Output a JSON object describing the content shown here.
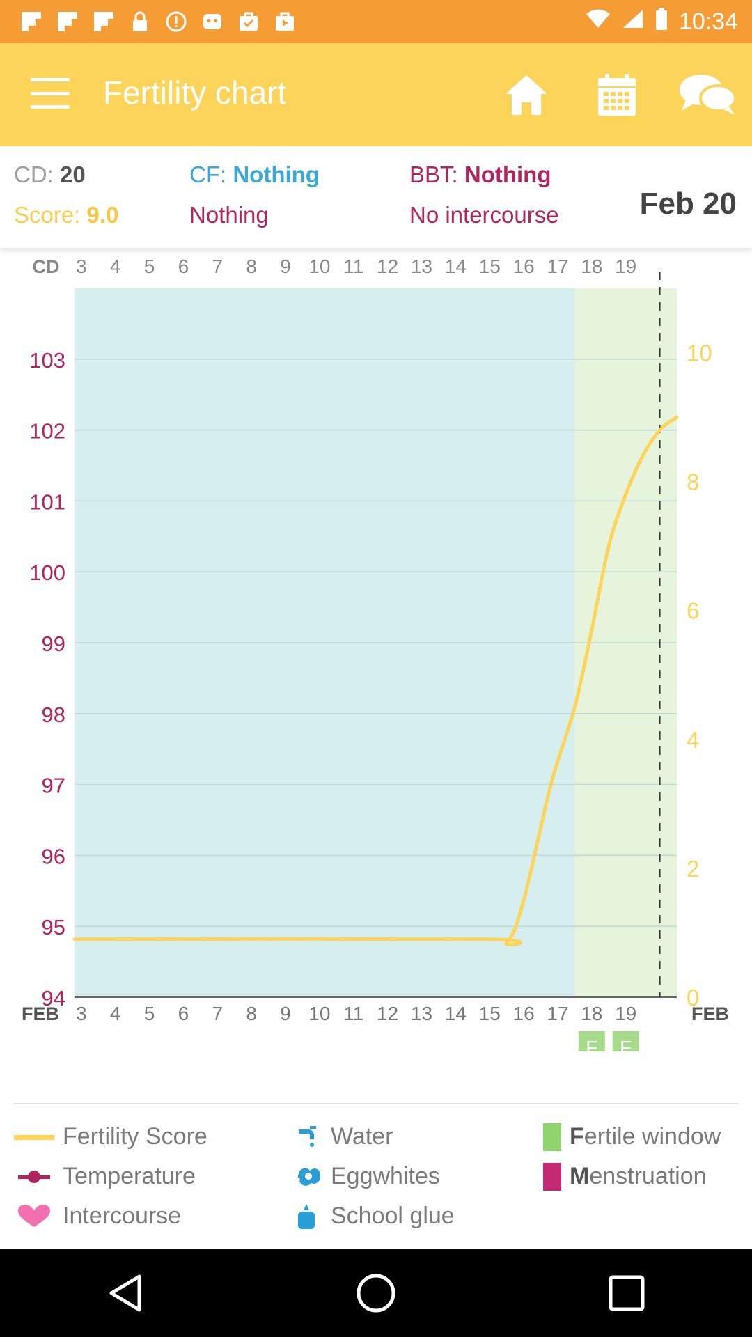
{
  "status_bar": {
    "time": "10:34",
    "colors": {
      "background": "#f59c35"
    }
  },
  "app_bar": {
    "title": "Fertility chart",
    "colors": {
      "background": "#fdd45a"
    }
  },
  "info": {
    "cd_label": "CD:",
    "cd_value": "20",
    "score_label": "Score:",
    "score_value": "9.0",
    "cf_label": "CF:",
    "cf_value": "Nothing",
    "cf_sub": "Nothing",
    "bbt_label": "BBT:",
    "bbt_value": "Nothing",
    "bbt_sub": "No intercourse",
    "date": "Feb 20"
  },
  "chart_data": {
    "type": "line",
    "top_axis_label": "CD",
    "bottom_axis_label_left": "FEB",
    "bottom_axis_label_right": "FEB",
    "x_ticks": [
      "3",
      "4",
      "5",
      "6",
      "7",
      "8",
      "9",
      "10",
      "11",
      "12",
      "13",
      "14",
      "15",
      "16",
      "17",
      "18",
      "19"
    ],
    "x_range": [
      2.8,
      20.5
    ],
    "y_left_ticks": [
      "94",
      "95",
      "96",
      "97",
      "98",
      "99",
      "100",
      "101",
      "102",
      "103"
    ],
    "y_left_range": [
      94,
      104
    ],
    "y_right_ticks": [
      "0",
      "2",
      "4",
      "6",
      "8",
      "10"
    ],
    "y_right_range": [
      0,
      11
    ],
    "fertile_window": {
      "from": 17.5,
      "to": 20.5,
      "labels": [
        "F",
        "F"
      ],
      "label_days": [
        18,
        19
      ]
    },
    "current_day_marker": 20,
    "series": [
      {
        "name": "Fertility Score",
        "axis": "right",
        "x": [
          2.8,
          14.8,
          15.5,
          16.0,
          16.8,
          17.5,
          18.0,
          18.5,
          19.0,
          19.5,
          20.0,
          20.5
        ],
        "values": [
          0.9,
          0.9,
          0.85,
          1.5,
          3.3,
          4.5,
          5.7,
          7.0,
          7.8,
          8.4,
          8.8,
          9.0
        ]
      }
    ],
    "colors": {
      "plot_bg": "#d6efee",
      "fertile_bg": "#e5f4da",
      "line": "#fdd45a",
      "left_axis": "#b0255f",
      "right_axis": "#fdd45a",
      "grid": "#bfd9d7",
      "fertile_tag": "#a6db8c"
    }
  },
  "legend": {
    "col1": [
      {
        "label": "Fertility Score",
        "icon": "yellow-line-icon"
      },
      {
        "label": "Temperature",
        "icon": "temperature-dot-line-icon"
      },
      {
        "label": "Intercourse",
        "icon": "heart-icon"
      }
    ],
    "col2": [
      {
        "label": "Water",
        "icon": "faucet-icon"
      },
      {
        "label": "Eggwhites",
        "icon": "eggwhite-splash-icon"
      },
      {
        "label": "School glue",
        "icon": "glue-bottle-icon"
      }
    ],
    "col3": [
      {
        "initial": "F",
        "rest": "ertile window",
        "icon": "green-square-icon"
      },
      {
        "initial": "M",
        "rest": "enstruation",
        "icon": "magenta-square-icon"
      }
    ]
  }
}
